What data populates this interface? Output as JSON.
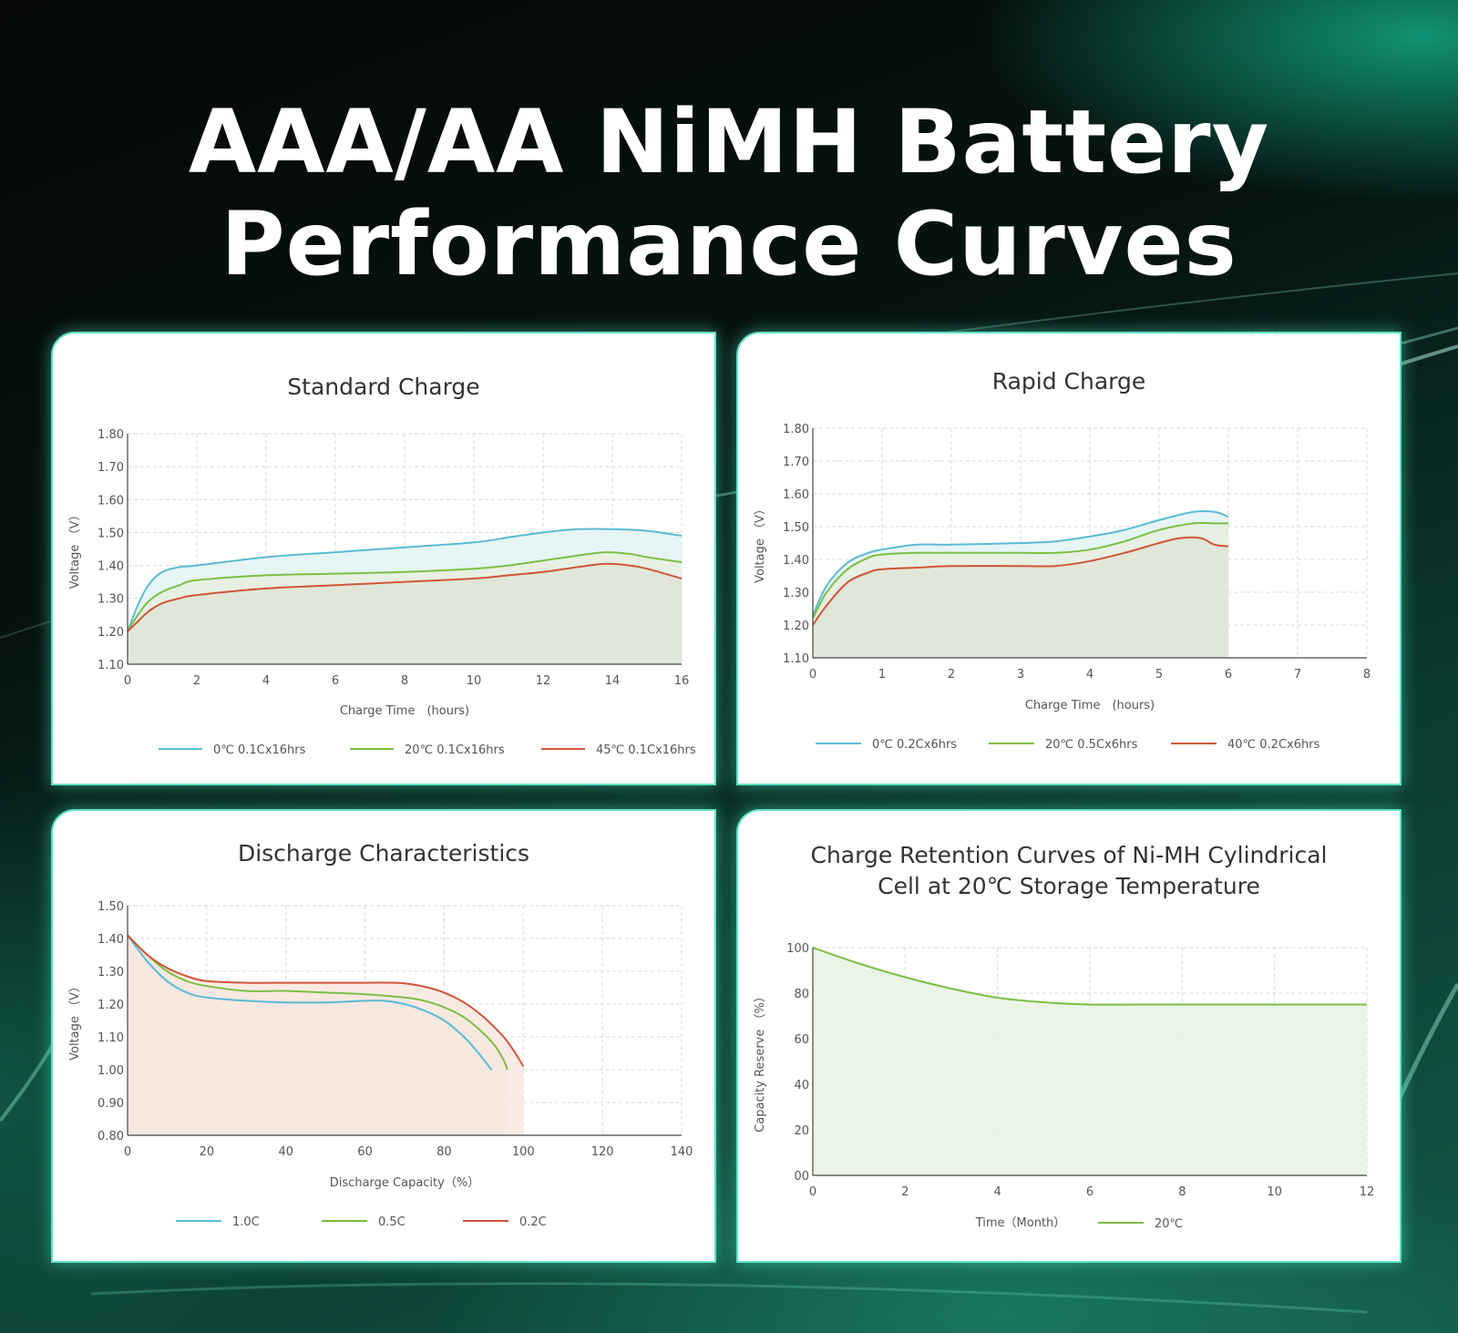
{
  "title": {
    "line1": "AAA/AA NiMH Battery",
    "line2": "Performance Curves"
  },
  "colors": {
    "blue": "#5bbbd6",
    "green": "#7cbf44",
    "red": "#d0553a",
    "grid": "#d9d9d9",
    "axis": "#444444",
    "text": "#555555"
  },
  "chart_data": [
    {
      "id": "standard",
      "type": "area",
      "title": "Standard Charge",
      "xlabel": "Charge Time　(hours)",
      "ylabel": "Voltage （V）",
      "xlim": [
        0,
        16
      ],
      "ylim": [
        1.1,
        1.8
      ],
      "xticks": [
        0,
        2,
        4,
        6,
        8,
        10,
        12,
        14,
        16
      ],
      "xtick_labels": [
        "0",
        "2",
        "4",
        "6",
        "8",
        "10",
        "12",
        "14",
        "16"
      ],
      "yticks": [
        1.1,
        1.2,
        1.3,
        1.4,
        1.5,
        1.6,
        1.7,
        1.8
      ],
      "ytick_labels": [
        "1.10",
        "1.20",
        "1.30",
        "1.40",
        "1.50",
        "1.60",
        "1.70",
        "1.80"
      ],
      "series": [
        {
          "name": "0℃  0.1Cx16hrs",
          "color": "#5bbbd6",
          "fill": "#e2f3f5",
          "x": [
            0,
            0.3,
            0.6,
            1,
            1.5,
            2,
            4,
            6,
            8,
            10,
            11,
            12,
            13,
            14,
            15,
            16
          ],
          "y": [
            1.2,
            1.28,
            1.34,
            1.38,
            1.395,
            1.4,
            1.425,
            1.44,
            1.455,
            1.47,
            1.485,
            1.5,
            1.51,
            1.51,
            1.505,
            1.49
          ]
        },
        {
          "name": "20℃ 0.1Cx16hrs",
          "color": "#7cbf44",
          "fill": "#e6efdf",
          "x": [
            0,
            0.3,
            0.6,
            1,
            1.5,
            2,
            4,
            6,
            8,
            10,
            11,
            12,
            13,
            13.8,
            14.5,
            15,
            16
          ],
          "y": [
            1.2,
            1.25,
            1.29,
            1.32,
            1.34,
            1.355,
            1.37,
            1.375,
            1.38,
            1.39,
            1.4,
            1.415,
            1.43,
            1.44,
            1.435,
            1.425,
            1.41
          ]
        },
        {
          "name": "45℃ 0.1Cx16hrs",
          "color": "#d0553a",
          "fill": "#dfe5d6",
          "x": [
            0,
            0.3,
            0.6,
            1,
            1.5,
            2,
            4,
            6,
            8,
            10,
            11,
            12,
            13,
            13.8,
            14.5,
            15,
            16
          ],
          "y": [
            1.2,
            1.23,
            1.26,
            1.285,
            1.3,
            1.31,
            1.33,
            1.34,
            1.35,
            1.36,
            1.37,
            1.38,
            1.395,
            1.405,
            1.4,
            1.39,
            1.36
          ]
        }
      ]
    },
    {
      "id": "rapid",
      "type": "area",
      "title": "Rapid Charge",
      "xlabel": "Charge Time　(hours)",
      "ylabel": "Voltage （V）",
      "xlim": [
        0,
        8
      ],
      "ylim": [
        1.1,
        1.8
      ],
      "xticks": [
        0,
        1,
        2,
        3,
        4,
        5,
        6,
        7,
        8
      ],
      "xtick_labels": [
        "0",
        "1",
        "2",
        "3",
        "4",
        "5",
        "6",
        "7",
        "8"
      ],
      "yticks": [
        1.1,
        1.2,
        1.3,
        1.4,
        1.5,
        1.6,
        1.7,
        1.8
      ],
      "ytick_labels": [
        "1.10",
        "1.20",
        "1.30",
        "1.40",
        "1.50",
        "1.60",
        "1.70",
        "1.80"
      ],
      "series": [
        {
          "name": "0℃  0.2Cx6hrs",
          "color": "#5bbbd6",
          "fill": "#e2f3f5",
          "x": [
            0,
            0.2,
            0.5,
            0.8,
            1,
            1.5,
            2,
            3,
            3.5,
            4,
            4.5,
            5,
            5.5,
            5.8,
            6
          ],
          "y": [
            1.23,
            1.32,
            1.39,
            1.42,
            1.43,
            1.445,
            1.445,
            1.45,
            1.455,
            1.47,
            1.49,
            1.52,
            1.545,
            1.545,
            1.53
          ]
        },
        {
          "name": "20℃ 0.5Cx6hrs",
          "color": "#7cbf44",
          "fill": "#e6efdf",
          "x": [
            0,
            0.2,
            0.5,
            0.8,
            1,
            1.5,
            2,
            3,
            3.5,
            4,
            4.5,
            5,
            5.5,
            5.8,
            6
          ],
          "y": [
            1.22,
            1.3,
            1.37,
            1.405,
            1.415,
            1.42,
            1.42,
            1.42,
            1.42,
            1.43,
            1.455,
            1.49,
            1.51,
            1.51,
            1.51
          ]
        },
        {
          "name": "40℃ 0.2Cx6hrs",
          "color": "#d0553a",
          "fill": "#dfe5d6",
          "x": [
            0,
            0.2,
            0.5,
            0.8,
            1,
            1.5,
            2,
            3,
            3.5,
            4,
            4.5,
            5,
            5.3,
            5.6,
            5.8,
            6
          ],
          "y": [
            1.2,
            1.26,
            1.33,
            1.36,
            1.37,
            1.375,
            1.38,
            1.38,
            1.38,
            1.395,
            1.42,
            1.45,
            1.465,
            1.465,
            1.445,
            1.44
          ]
        }
      ]
    },
    {
      "id": "discharge",
      "type": "area",
      "title": "Discharge Characteristics",
      "xlabel": "Discharge Capacity（%）",
      "ylabel": "Voltage （V）",
      "xlim": [
        0,
        140
      ],
      "ylim": [
        0.8,
        1.5
      ],
      "xticks": [
        0,
        20,
        40,
        60,
        80,
        100,
        120,
        140
      ],
      "xtick_labels": [
        "0",
        "20",
        "40",
        "60",
        "80",
        "100",
        "120",
        "140"
      ],
      "yticks": [
        0.8,
        0.9,
        1.0,
        1.1,
        1.2,
        1.3,
        1.4,
        1.5
      ],
      "ytick_labels": [
        "0.80",
        "0.90",
        "1.00",
        "1.10",
        "1.20",
        "1.30",
        "1.40",
        "1.50"
      ],
      "series": [
        {
          "name": "1.0C",
          "color": "#5bbbd6",
          "fill": "#e2f3f5",
          "x": [
            0,
            5,
            10,
            15,
            20,
            30,
            40,
            50,
            60,
            65,
            70,
            75,
            80,
            85,
            88,
            90,
            92
          ],
          "y": [
            1.41,
            1.33,
            1.27,
            1.235,
            1.22,
            1.21,
            1.205,
            1.205,
            1.21,
            1.21,
            1.2,
            1.18,
            1.15,
            1.1,
            1.06,
            1.03,
            1.0
          ]
        },
        {
          "name": "0.5C",
          "color": "#7cbf44",
          "fill": "#e6efdf",
          "x": [
            0,
            5,
            10,
            15,
            20,
            30,
            40,
            50,
            60,
            70,
            75,
            80,
            85,
            90,
            93,
            95,
            96
          ],
          "y": [
            1.41,
            1.35,
            1.3,
            1.27,
            1.255,
            1.24,
            1.24,
            1.235,
            1.23,
            1.22,
            1.21,
            1.19,
            1.16,
            1.11,
            1.07,
            1.03,
            1.0
          ]
        },
        {
          "name": "0.2C",
          "color": "#d0553a",
          "fill": "#f9e6df",
          "x": [
            0,
            5,
            10,
            15,
            20,
            30,
            40,
            50,
            60,
            68,
            72,
            76,
            80,
            85,
            90,
            95,
            98,
            100
          ],
          "y": [
            1.41,
            1.35,
            1.31,
            1.285,
            1.27,
            1.265,
            1.265,
            1.265,
            1.265,
            1.265,
            1.26,
            1.25,
            1.235,
            1.205,
            1.16,
            1.1,
            1.05,
            1.01
          ]
        }
      ]
    },
    {
      "id": "retention",
      "type": "area",
      "title_lines": [
        "Charge Retention Curves of Ni-MH Cylindrical",
        "Cell at 20℃ Storage Temperature"
      ],
      "xlabel": "Time（Month）",
      "ylabel": "Capacity Reserve （%）",
      "xlim": [
        0,
        12
      ],
      "ylim": [
        0,
        100
      ],
      "xticks": [
        0,
        2,
        4,
        6,
        8,
        10,
        12
      ],
      "xtick_labels": [
        "0",
        "2",
        "4",
        "6",
        "8",
        "10",
        "12"
      ],
      "yticks": [
        0,
        20,
        40,
        60,
        80,
        100
      ],
      "ytick_labels": [
        "00",
        "20",
        "40",
        "60",
        "80",
        "100"
      ],
      "series": [
        {
          "name": "20℃",
          "color": "#7cbf44",
          "fill": "#e8f3e3",
          "x": [
            0,
            1,
            2,
            3,
            4,
            5,
            6,
            7,
            8,
            9,
            10,
            11,
            12
          ],
          "y": [
            100,
            93,
            87,
            82,
            78,
            76,
            75,
            75,
            75,
            75,
            75,
            75,
            75
          ]
        }
      ]
    }
  ]
}
